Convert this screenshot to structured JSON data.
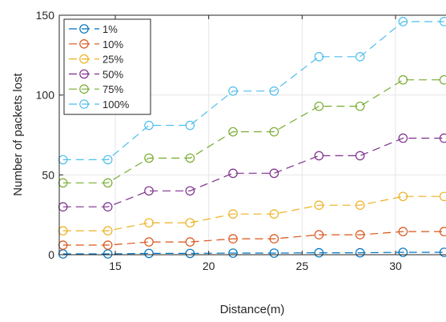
{
  "chart_data": {
    "type": "line",
    "xlabel": "Distance(m)",
    "ylabel": "Number of packets lost",
    "xlim": [
      12,
      32.7
    ],
    "ylim": [
      0,
      150
    ],
    "xticks": [
      15,
      20,
      25,
      30
    ],
    "yticks": [
      0,
      50,
      100,
      150
    ],
    "grid": true,
    "legend_position": "top-left",
    "x": [
      12.2,
      14.6,
      16.8,
      19.0,
      21.3,
      23.5,
      25.9,
      28.1,
      30.4,
      32.6
    ],
    "series": [
      {
        "name": "1%",
        "color": "#0072BD",
        "values": [
          0.5,
          0.5,
          0.8,
          0.8,
          1.0,
          1.0,
          1.2,
          1.2,
          1.5,
          1.5
        ]
      },
      {
        "name": "10%",
        "color": "#D95319",
        "values": [
          6,
          6,
          8,
          8,
          10,
          10,
          12.5,
          12.5,
          14.5,
          14.5
        ]
      },
      {
        "name": "25%",
        "color": "#EDB120",
        "values": [
          15,
          15,
          20,
          20,
          25.5,
          25.5,
          31,
          31,
          36.5,
          36.5
        ]
      },
      {
        "name": "50%",
        "color": "#7E2F8E",
        "values": [
          30,
          30,
          40,
          40,
          51,
          51,
          62,
          62,
          73,
          73
        ]
      },
      {
        "name": "75%",
        "color": "#77AC30",
        "values": [
          45,
          45,
          60.5,
          60.5,
          77,
          77,
          93,
          93,
          109.5,
          109.5
        ]
      },
      {
        "name": "100%",
        "color": "#4DBEEE",
        "values": [
          59.5,
          59.5,
          81,
          81,
          102.5,
          102.5,
          124,
          124,
          146,
          146
        ]
      }
    ]
  }
}
